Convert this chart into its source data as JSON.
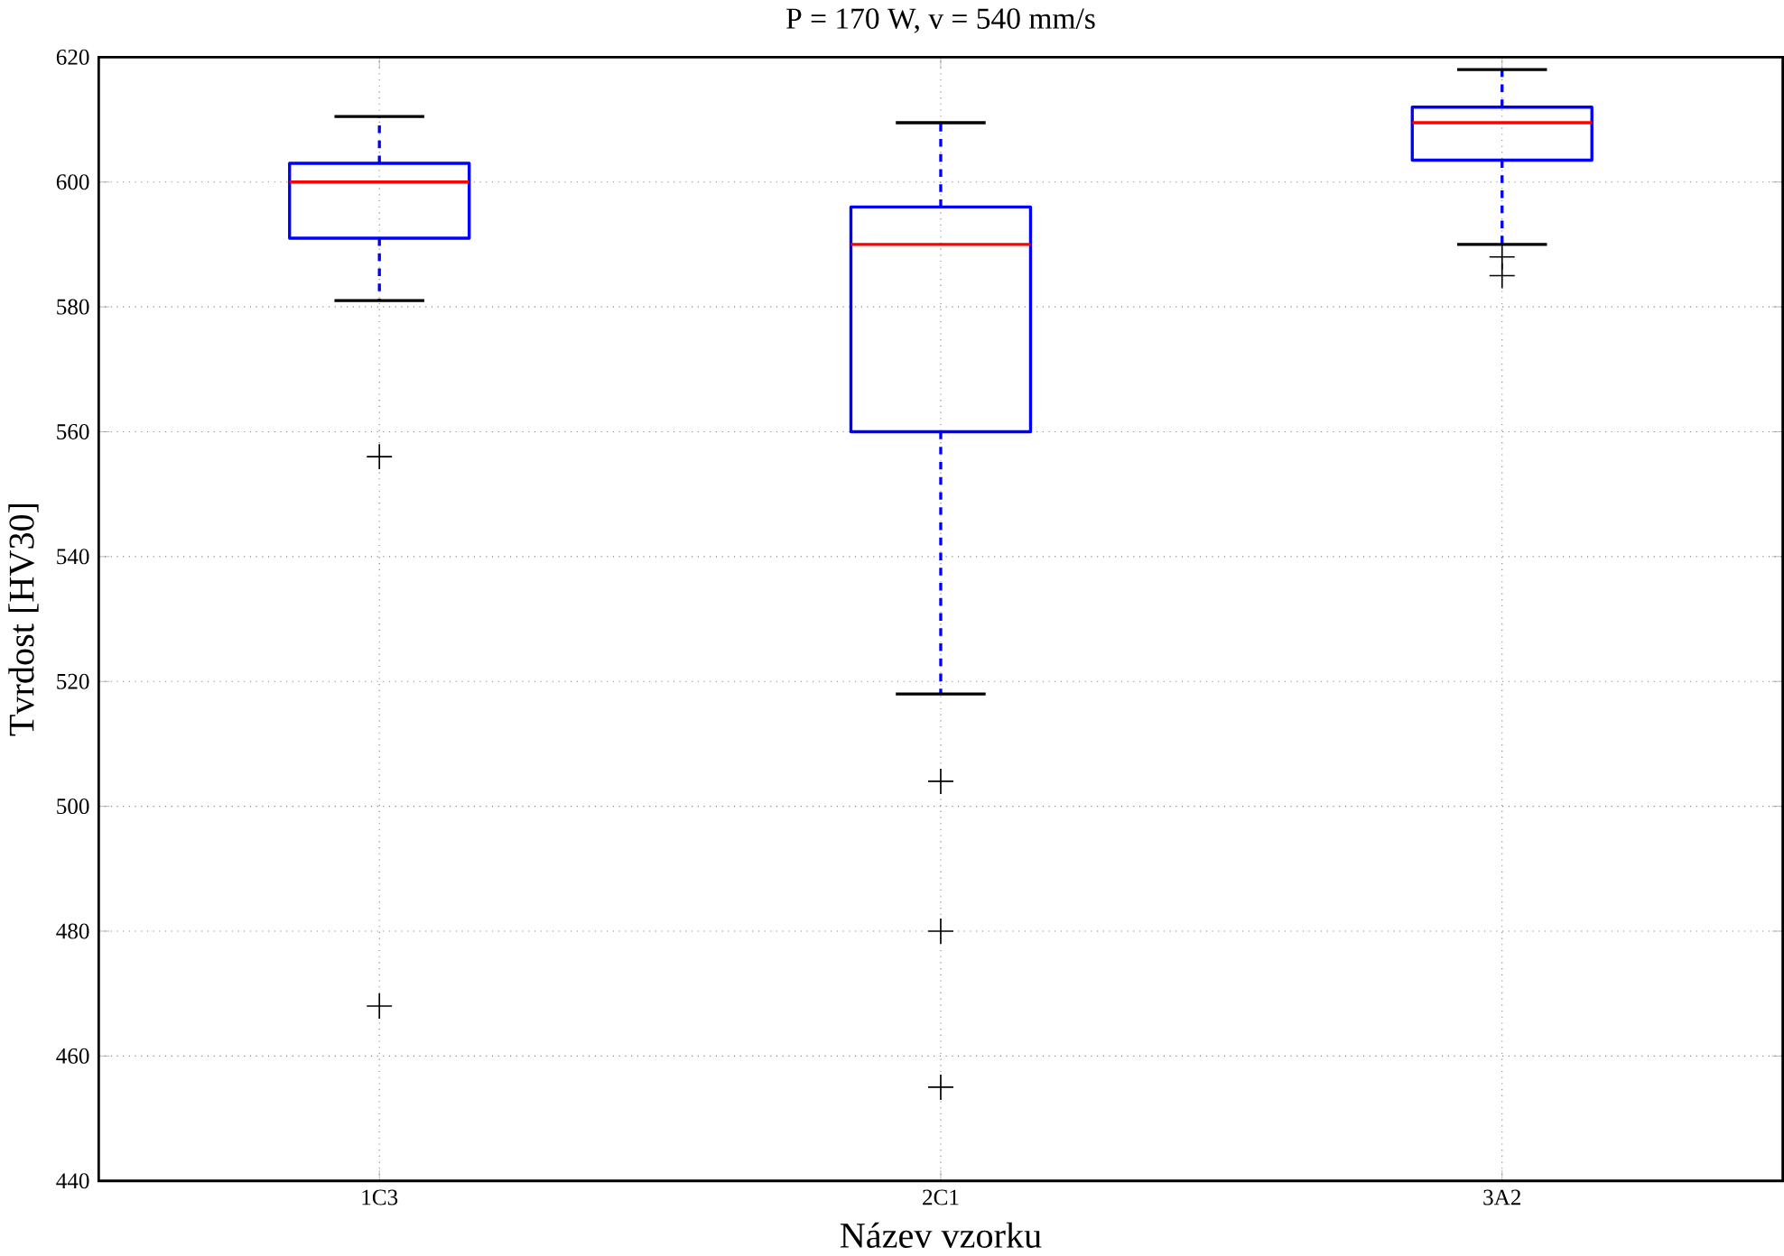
{
  "chart_data": {
    "type": "box",
    "title": "P = 170 W, v = 540 mm/s",
    "xlabel": "Název vzorku",
    "ylabel": "Tvrdost [HV30]",
    "categories": [
      "1C3",
      "2C1",
      "3A2"
    ],
    "series": [
      {
        "color": "#0000ff",
        "boxes": [
          {
            "low": 581,
            "q1": 591,
            "median": 600,
            "q3": 603,
            "high": 610.5,
            "outliers": [
              556,
              468
            ]
          },
          {
            "low": 518,
            "q1": 560,
            "median": 590,
            "q3": 596,
            "high": 609.5,
            "outliers": [
              504,
              480,
              455
            ]
          },
          {
            "low": 590,
            "q1": 603.5,
            "median": 609.5,
            "q3": 612,
            "high": 618,
            "outliers": [
              588,
              585
            ]
          }
        ]
      }
    ],
    "ylim": [
      440,
      620
    ],
    "yticks": [
      440,
      460,
      480,
      500,
      520,
      540,
      560,
      580,
      600,
      620
    ],
    "grid": true,
    "marker": "cross",
    "line_style": "dashed"
  }
}
